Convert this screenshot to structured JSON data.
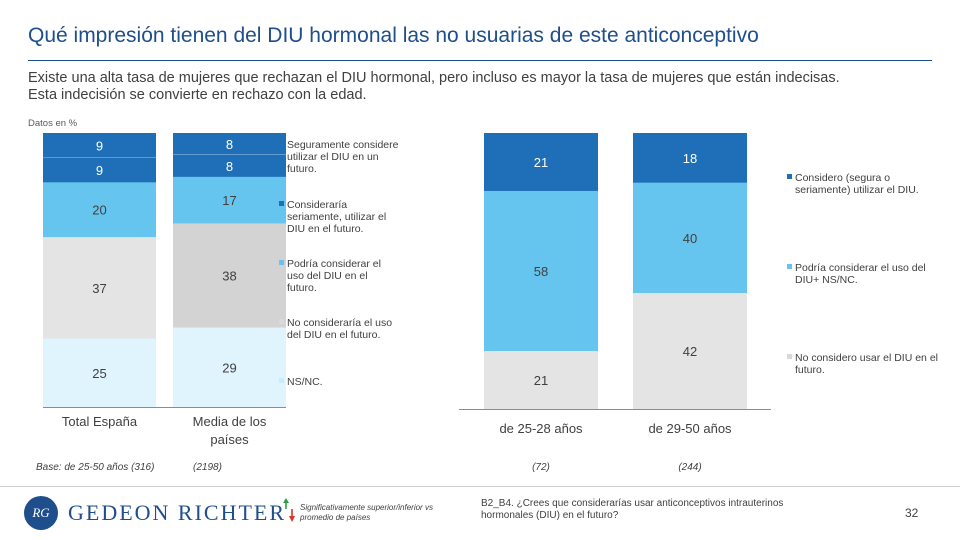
{
  "title": "Qué impresión tienen del DIU hormonal las no usuarias de este anticonceptivo",
  "subtitle_line1": "Existe una alta tasa de mujeres que rechazan el DIU hormonal, pero incluso es mayor la tasa de mujeres que están indecisas.",
  "subtitle_line2": "Esta indecisión se convierte en rechazo con la edad.",
  "units_label": "Datos en %",
  "colors": {
    "dark_blue": "#1f6fb8",
    "mid_blue": "#66c5ee",
    "light_blue": "#dff4fc",
    "light_gray": "#e4e4e4",
    "mid_gray": "#d3d3d3",
    "axis": "#8c8c8c"
  },
  "chart_data": [
    {
      "type": "bar",
      "stacked": true,
      "normalized": true,
      "title": "",
      "categories": [
        "Total España",
        "Media de los países"
      ],
      "category_lines": [
        [
          "Total España"
        ],
        [
          "Media de los",
          "países"
        ]
      ],
      "series": [
        {
          "name": "Seguramente considere utilizar el DIU en un futuro.",
          "values": [
            9,
            8
          ],
          "color": "#1f6fb8",
          "text_color": "#ffffff"
        },
        {
          "name": "Consideraría seriamente, utilizar el DIU en el futuro.",
          "values": [
            9,
            8
          ],
          "color": "#1f6fb8",
          "text_color": "#ffffff"
        },
        {
          "name": "Podría considerar el uso del DIU en el futuro.",
          "values": [
            20,
            17
          ],
          "color": "#66c5ee",
          "text_color": "#404040"
        },
        {
          "name": "No consideraría el uso del DIU en el futuro.",
          "values": [
            37,
            38
          ],
          "color": "#e4e4e4",
          "text_color": "#404040"
        },
        {
          "name": "NS/NC.",
          "values": [
            25,
            29
          ],
          "color": "#dff4fc",
          "text_color": "#404040"
        }
      ],
      "legend_lines": [
        [
          "Seguramente",
          "considere utilizar el",
          "DIU en un futuro."
        ],
        [
          "Consideraría",
          "seriamente, utilizar",
          "el DIU en el futuro."
        ],
        [
          "Podría considerar el",
          "uso del DIU en el",
          "futuro."
        ],
        [
          "No consideraría el",
          "uso del DIU en el",
          "futuro."
        ],
        [
          "NS/NC."
        ]
      ],
      "legend_position": "right",
      "base_labels": [
        "Base: de 25-50 años (316)",
        "(2198)"
      ]
    },
    {
      "type": "bar",
      "stacked": true,
      "normalized": true,
      "title": "",
      "categories": [
        "de 25-28 años",
        "de 29-50 años"
      ],
      "series": [
        {
          "name": "Considero (segura o seriamente) utilizar el DIU.",
          "values": [
            21,
            18
          ],
          "color": "#1f6fb8",
          "text_color": "#ffffff"
        },
        {
          "name": "Podría considerar el uso del DIU+ NS/NC.",
          "values": [
            58,
            40
          ],
          "color": "#66c5ee",
          "text_color": "#404040"
        },
        {
          "name": "No considero usar el DIU en el futuro.",
          "values": [
            21,
            42
          ],
          "color": "#e4e4e4",
          "text_color": "#404040"
        }
      ],
      "legend_lines": [
        [
          "Considero (segura o",
          "seriamente) utilizar el DIU."
        ],
        [
          "Podría considerar el uso",
          "del DIU+ NS/NC."
        ],
        [
          "No considero usar el DIU",
          "en el futuro."
        ]
      ],
      "legend_position": "right",
      "base_labels": [
        "(72)",
        "(244)"
      ]
    }
  ],
  "footer": {
    "logo_mark": "RG",
    "logo_text": "GEDEON RICHTER",
    "significance_note": "Significativamente superior/inferior vs promedio de países",
    "question": "B2_B4. ¿Crees que considerarías usar anticonceptivos intrauterinos hormonales (DIU) en el futuro?",
    "page_number": "32"
  }
}
